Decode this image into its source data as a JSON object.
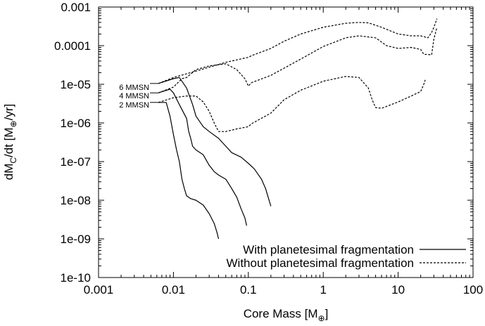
{
  "chart_data": {
    "type": "line",
    "title": "",
    "xlabel": {
      "text": "Core Mass [M",
      "sub": "⊕",
      "end": "]"
    },
    "ylabel": {
      "pre": "dM",
      "sub": "C",
      "mid": "/dt [M",
      "sub2": "⊕",
      "end": "/yr]"
    },
    "xscale": "log",
    "yscale": "log",
    "xlim": [
      0.001,
      100
    ],
    "ylim": [
      1e-10,
      0.001
    ],
    "grid": false,
    "legend_placement": "bottom-right",
    "x_ticks": [
      {
        "value": 0.001,
        "label": "0.001"
      },
      {
        "value": 0.01,
        "label": "0.01"
      },
      {
        "value": 0.1,
        "label": "0.1"
      },
      {
        "value": 1,
        "label": "1"
      },
      {
        "value": 10,
        "label": "10"
      },
      {
        "value": 100,
        "label": "100"
      }
    ],
    "y_ticks": [
      {
        "value": 1e-10,
        "label": "1e-10"
      },
      {
        "value": 1e-09,
        "label": "1e-09"
      },
      {
        "value": 1e-08,
        "label": "1e-08"
      },
      {
        "value": 1e-07,
        "label": "1e-07"
      },
      {
        "value": 1e-06,
        "label": "1e-06"
      },
      {
        "value": 1e-05,
        "label": "1e-05"
      },
      {
        "value": 0.0001,
        "label": "0.0001"
      },
      {
        "value": 0.001,
        "label": "0.001"
      }
    ],
    "legend": [
      {
        "label": "With planetesimal fragmentation",
        "style": "solid"
      },
      {
        "label": "Without planetesimal fragmentation",
        "style": "dashed"
      }
    ],
    "annotations": [
      {
        "label": "6 MMSN",
        "x": 0.0063,
        "y": 1.05e-05
      },
      {
        "label": "4 MMSN",
        "x": 0.0063,
        "y": 6e-06
      },
      {
        "label": "2 MMSN",
        "x": 0.0063,
        "y": 3.4e-06
      }
    ],
    "series": [
      {
        "style": "dashed",
        "points": [
          [
            0.0063,
            1.05e-05
          ],
          [
            0.01,
            1.5e-05
          ],
          [
            0.02,
            2.2e-05
          ],
          [
            0.05,
            3.7e-05
          ],
          [
            0.1,
            5e-05
          ],
          [
            0.11,
            5.5e-05
          ],
          [
            0.2,
            8.5e-05
          ],
          [
            0.3,
            0.00013
          ],
          [
            0.5,
            0.0002
          ],
          [
            1,
            0.0003
          ],
          [
            2,
            0.00038
          ],
          [
            3,
            0.0004
          ],
          [
            4,
            0.00039
          ],
          [
            6,
            0.0003
          ],
          [
            10,
            0.0002
          ],
          [
            15,
            0.00018
          ],
          [
            20,
            0.00018
          ],
          [
            25,
            0.00016
          ],
          [
            28,
            0.00022
          ],
          [
            30,
            0.0003
          ],
          [
            33,
            0.0005
          ]
        ]
      },
      {
        "style": "dashed",
        "points": [
          [
            0.0063,
            6e-06
          ],
          [
            0.01,
            8.5e-06
          ],
          [
            0.013,
            1.4e-05
          ],
          [
            0.015,
            1.5e-05
          ],
          [
            0.02,
            2.4e-05
          ],
          [
            0.03,
            3e-05
          ],
          [
            0.05,
            3.4e-05
          ],
          [
            0.07,
            2.4e-05
          ],
          [
            0.09,
            1.4e-05
          ],
          [
            0.1,
            9e-06
          ],
          [
            0.11,
            1.1e-05
          ],
          [
            0.2,
            1.7e-05
          ],
          [
            0.5,
            4.5e-05
          ],
          [
            1,
            9.5e-05
          ],
          [
            2,
            0.00016
          ],
          [
            3,
            0.00018
          ],
          [
            5,
            0.00016
          ],
          [
            7,
            0.0001
          ],
          [
            10,
            8.5e-05
          ],
          [
            15,
            9e-05
          ],
          [
            20,
            8e-05
          ],
          [
            22,
            6e-05
          ],
          [
            28,
            5.8e-05
          ],
          [
            30,
            0.00015
          ],
          [
            33,
            0.0003
          ]
        ]
      },
      {
        "style": "dashed",
        "points": [
          [
            0.0063,
            3.4e-06
          ],
          [
            0.01,
            4.5e-06
          ],
          [
            0.015,
            5e-06
          ],
          [
            0.02,
            5e-06
          ],
          [
            0.025,
            3.5e-06
          ],
          [
            0.03,
            2e-06
          ],
          [
            0.035,
            1e-06
          ],
          [
            0.04,
            6e-07
          ],
          [
            0.05,
            6e-07
          ],
          [
            0.07,
            7e-07
          ],
          [
            0.1,
            8e-07
          ],
          [
            0.11,
            9.5e-07
          ],
          [
            0.2,
            1.8e-06
          ],
          [
            0.3,
            4e-06
          ],
          [
            0.5,
            7e-06
          ],
          [
            1,
            1.2e-05
          ],
          [
            2,
            1.6e-05
          ],
          [
            3,
            1.5e-05
          ],
          [
            4,
            8e-06
          ],
          [
            4.5,
            4e-06
          ],
          [
            5,
            2.5e-06
          ],
          [
            6,
            2.4e-06
          ],
          [
            10,
            3.5e-06
          ],
          [
            15,
            5e-06
          ],
          [
            20,
            6.5e-06
          ],
          [
            22,
            1e-05
          ],
          [
            23,
            1.3e-05
          ]
        ]
      },
      {
        "style": "solid",
        "points": [
          [
            0.0063,
            1.05e-05
          ],
          [
            0.01,
            1.4e-05
          ],
          [
            0.012,
            1.5e-05
          ],
          [
            0.015,
            8e-06
          ],
          [
            0.018,
            3e-06
          ],
          [
            0.02,
            1.5e-06
          ],
          [
            0.025,
            8e-07
          ],
          [
            0.03,
            6e-07
          ],
          [
            0.04,
            4e-07
          ],
          [
            0.05,
            2.5e-07
          ],
          [
            0.06,
            1.7e-07
          ],
          [
            0.08,
            1.3e-07
          ],
          [
            0.1,
            9e-08
          ],
          [
            0.12,
            6.5e-08
          ],
          [
            0.15,
            3.5e-08
          ],
          [
            0.17,
            2e-08
          ],
          [
            0.2,
            7e-09
          ]
        ]
      },
      {
        "style": "solid",
        "points": [
          [
            0.0063,
            6e-06
          ],
          [
            0.009,
            7.5e-06
          ],
          [
            0.01,
            6e-06
          ],
          [
            0.012,
            3e-06
          ],
          [
            0.015,
            1.3e-06
          ],
          [
            0.016,
            6e-07
          ],
          [
            0.017,
            4e-07
          ],
          [
            0.018,
            2.5e-07
          ],
          [
            0.02,
            2e-07
          ],
          [
            0.025,
            1.5e-07
          ],
          [
            0.03,
            8e-08
          ],
          [
            0.035,
            5.5e-08
          ],
          [
            0.04,
            4.5e-08
          ],
          [
            0.05,
            3.5e-08
          ],
          [
            0.06,
            2e-08
          ],
          [
            0.07,
            1.2e-08
          ],
          [
            0.08,
            6e-09
          ],
          [
            0.09,
            3.5e-09
          ],
          [
            0.095,
            2.2e-09
          ]
        ]
      },
      {
        "style": "solid",
        "points": [
          [
            0.0063,
            3.4e-06
          ],
          [
            0.008,
            3.4e-06
          ],
          [
            0.009,
            1.5e-06
          ],
          [
            0.01,
            5e-07
          ],
          [
            0.011,
            2e-07
          ],
          [
            0.012,
            1e-07
          ],
          [
            0.013,
            3.5e-08
          ],
          [
            0.014,
            2e-08
          ],
          [
            0.015,
            1.3e-08
          ],
          [
            0.017,
            1.1e-08
          ],
          [
            0.02,
            1e-08
          ],
          [
            0.025,
            7.5e-09
          ],
          [
            0.03,
            4.5e-09
          ],
          [
            0.035,
            2.5e-09
          ],
          [
            0.038,
            1.5e-09
          ],
          [
            0.04,
            1e-09
          ]
        ]
      }
    ]
  }
}
